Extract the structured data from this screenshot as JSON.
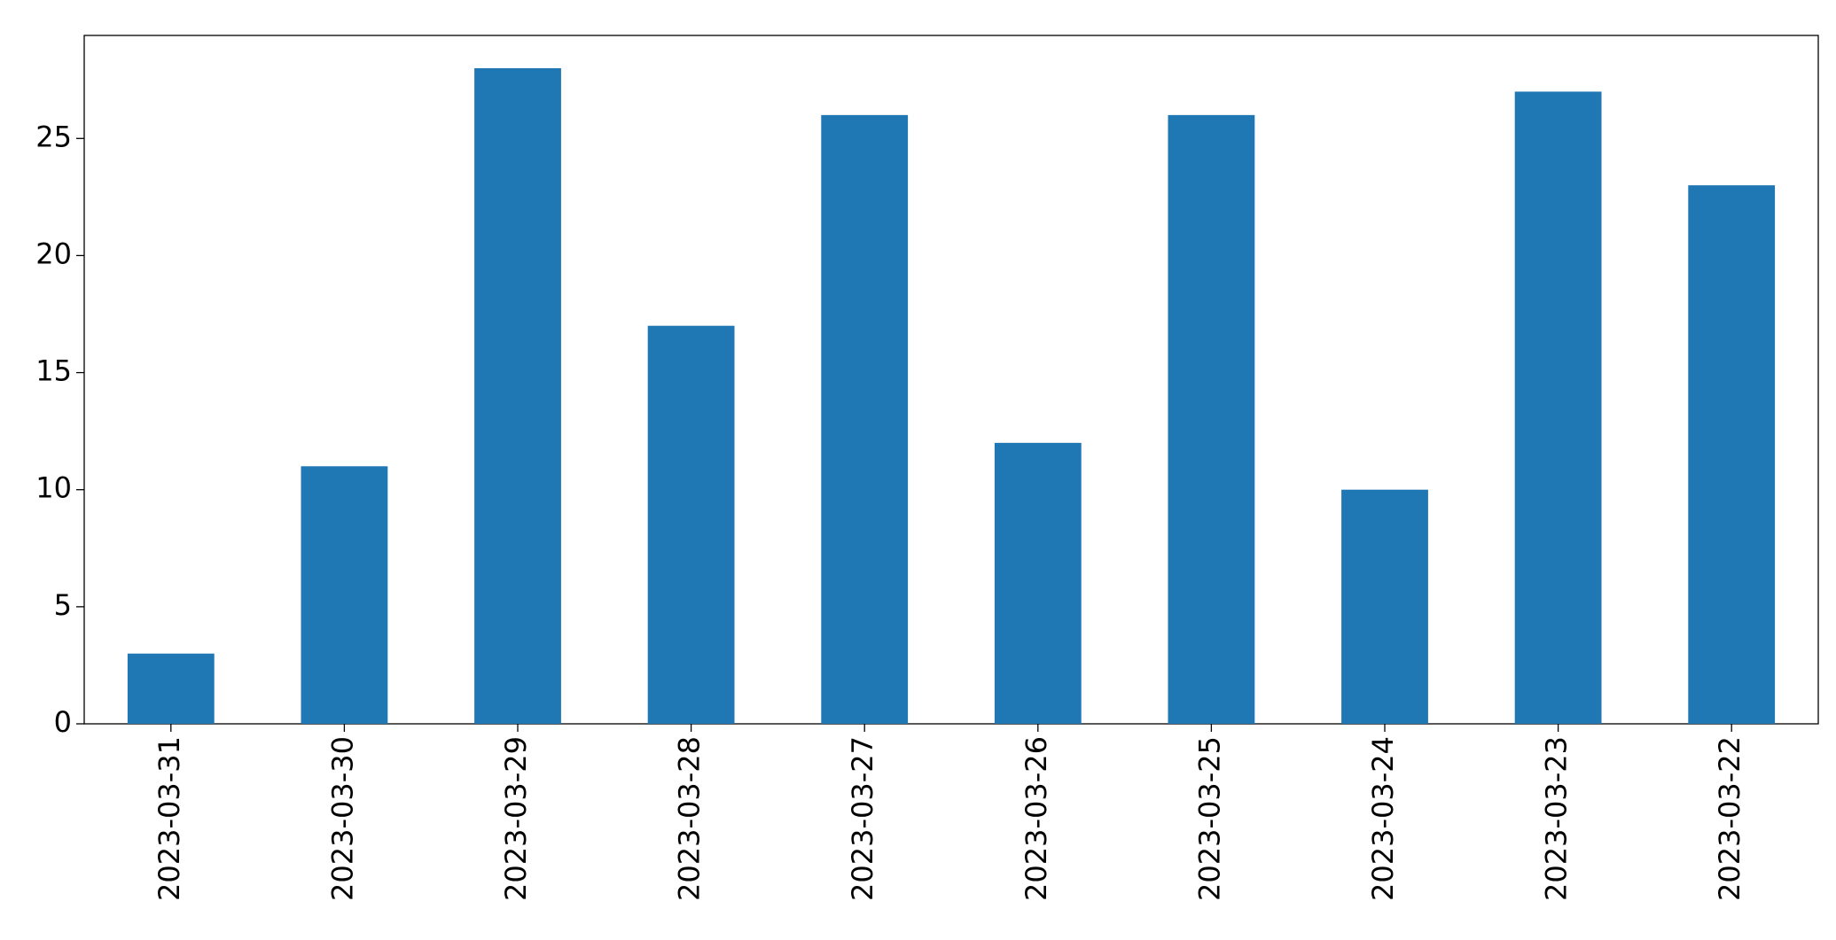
{
  "chart_data": {
    "type": "bar",
    "categories": [
      "2023-03-31",
      "2023-03-30",
      "2023-03-29",
      "2023-03-28",
      "2023-03-27",
      "2023-03-26",
      "2023-03-25",
      "2023-03-24",
      "2023-03-23",
      "2023-03-22"
    ],
    "values": [
      3,
      11,
      28,
      17,
      26,
      12,
      26,
      10,
      27,
      23
    ],
    "color": "#1f77b4",
    "ylim": [
      0,
      29.4
    ],
    "yticks": [
      0,
      5,
      10,
      15,
      20,
      25
    ],
    "grid": false
  }
}
